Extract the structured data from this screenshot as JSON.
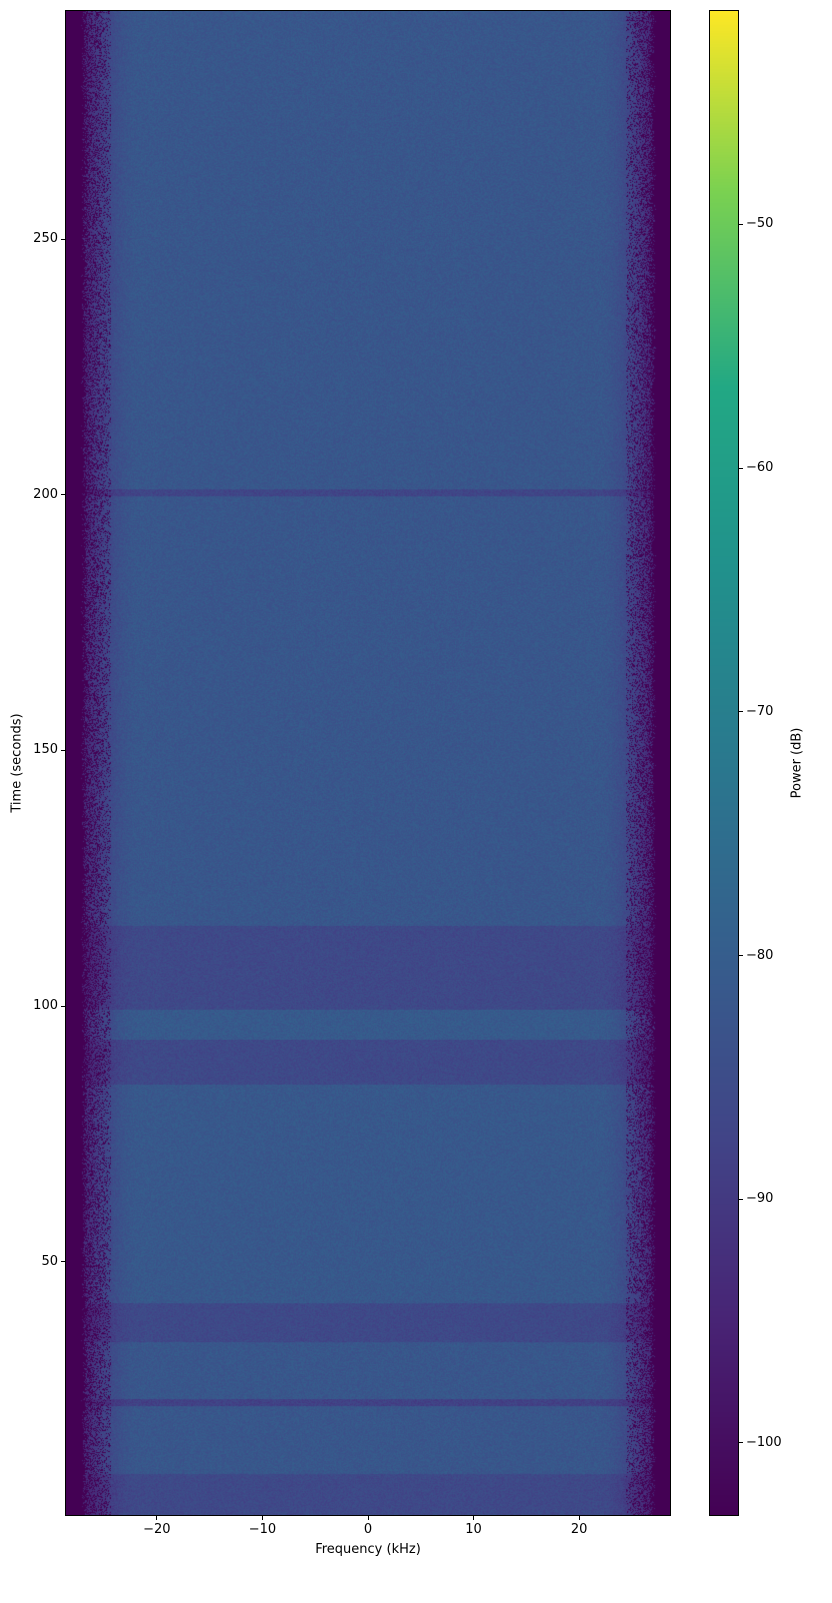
{
  "chart_data": {
    "type": "heatmap",
    "title": "",
    "xlabel": "Frequency (kHz)",
    "ylabel": "Time (seconds)",
    "colorbar_label": "Power (dB)",
    "colormap": "viridis",
    "xlim": [
      -28.7,
      28.7
    ],
    "ylim": [
      0.3,
      294.8
    ],
    "clim": [
      -103,
      -41.2
    ],
    "xticks": [
      -20,
      -10,
      0,
      10,
      20
    ],
    "xtick_labels": [
      "−20",
      "−10",
      "0",
      "10",
      "20"
    ],
    "yticks": [
      50,
      100,
      150,
      200,
      250
    ],
    "ytick_labels": [
      "50",
      "100",
      "150",
      "200",
      "250"
    ],
    "cticks": [
      -100,
      -90,
      -80,
      -70,
      -60,
      -50
    ],
    "ctick_labels": [
      "−100",
      "−90",
      "−80",
      "−70",
      "−60",
      "−50"
    ],
    "passband_edge_khz": 27,
    "floor_power_db": -103,
    "baseline_power_db": -82,
    "time_bands": [
      {
        "t_start": 0.3,
        "t_end": 8.4,
        "power_db": -86
      },
      {
        "t_start": 8.4,
        "t_end": 21.8,
        "power_db": -82
      },
      {
        "t_start": 21.8,
        "t_end": 23.0,
        "power_db": -88
      },
      {
        "t_start": 23.0,
        "t_end": 34.2,
        "power_db": -82
      },
      {
        "t_start": 34.2,
        "t_end": 41.9,
        "power_db": -86
      },
      {
        "t_start": 41.9,
        "t_end": 84.6,
        "power_db": -81.5
      },
      {
        "t_start": 84.6,
        "t_end": 93.4,
        "power_db": -86
      },
      {
        "t_start": 93.4,
        "t_end": 99.4,
        "power_db": -81
      },
      {
        "t_start": 99.4,
        "t_end": 115.8,
        "power_db": -86
      },
      {
        "t_start": 115.8,
        "t_end": 199.8,
        "power_db": -82
      },
      {
        "t_start": 199.8,
        "t_end": 201.3,
        "power_db": -87
      },
      {
        "t_start": 201.3,
        "t_end": 294.8,
        "power_db": -82
      }
    ]
  }
}
